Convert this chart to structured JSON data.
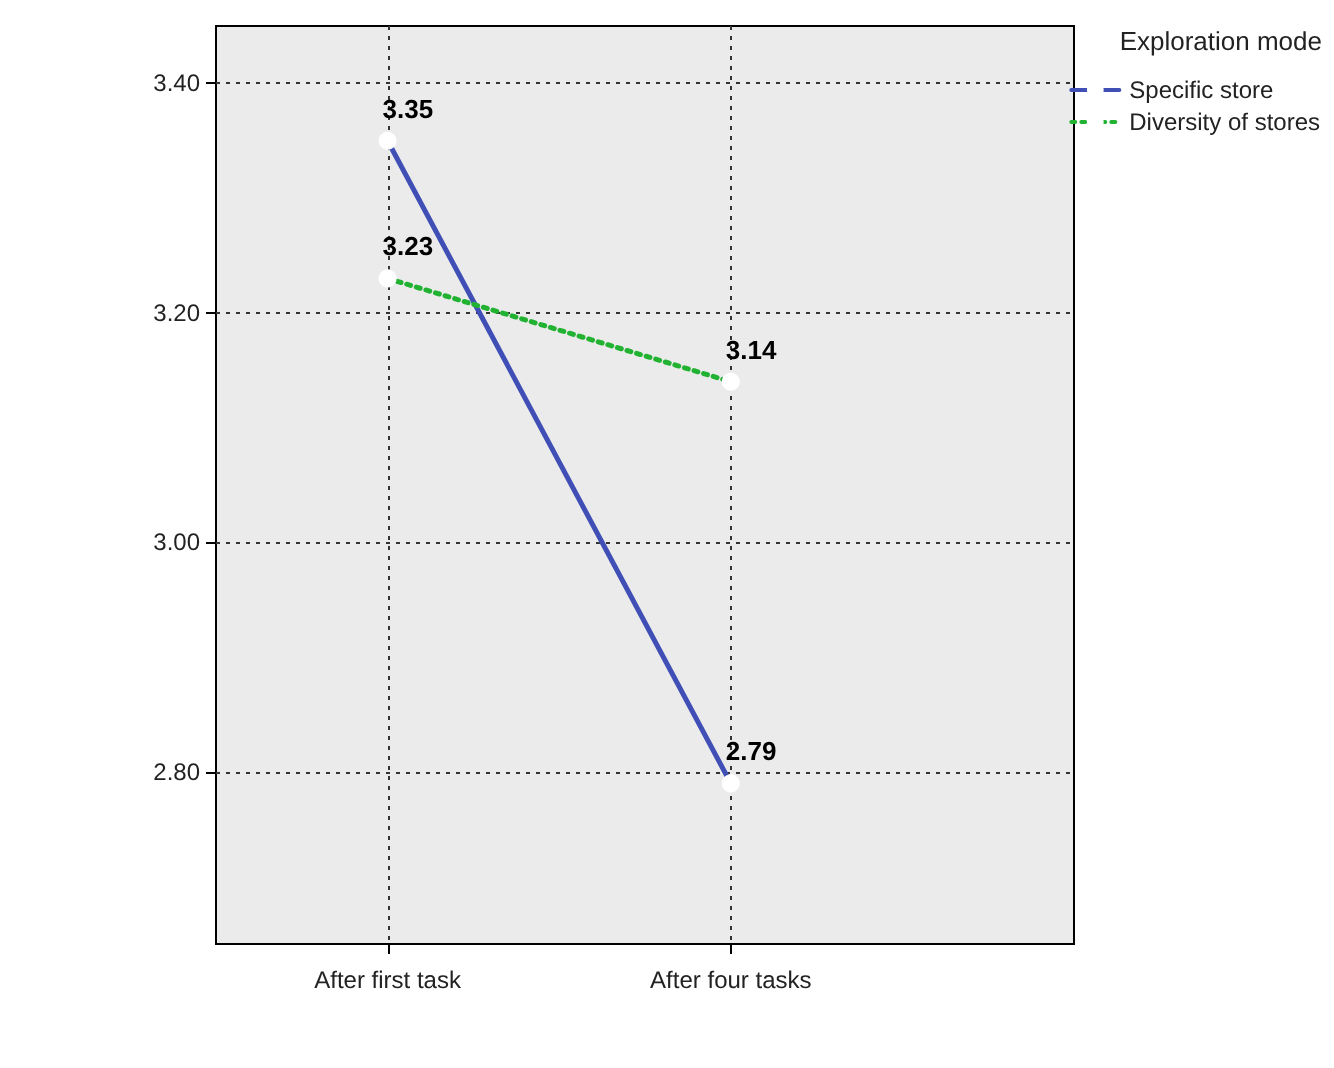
{
  "chart_data": {
    "type": "line",
    "categories": [
      "After first task",
      "After four tasks"
    ],
    "series": [
      {
        "name": "Specific store",
        "color": "#3f4fb5",
        "values": [
          3.35,
          2.79
        ],
        "line_style": "solid"
      },
      {
        "name": "Diversity of stores",
        "color": "#22b232",
        "values": [
          3.23,
          3.14
        ],
        "line_style": "dotted"
      }
    ],
    "legend_title": "Exploration mode",
    "legend": "top right",
    "ylim": [
      2.65,
      3.45
    ],
    "yticks": [
      {
        "value": 2.8,
        "label": "2.80"
      },
      {
        "value": 3.0,
        "label": "3.00"
      },
      {
        "value": 3.2,
        "label": "3.20"
      },
      {
        "value": 3.4,
        "label": "3.40"
      }
    ],
    "grid": true,
    "marker": "circle",
    "data_labels": true
  }
}
